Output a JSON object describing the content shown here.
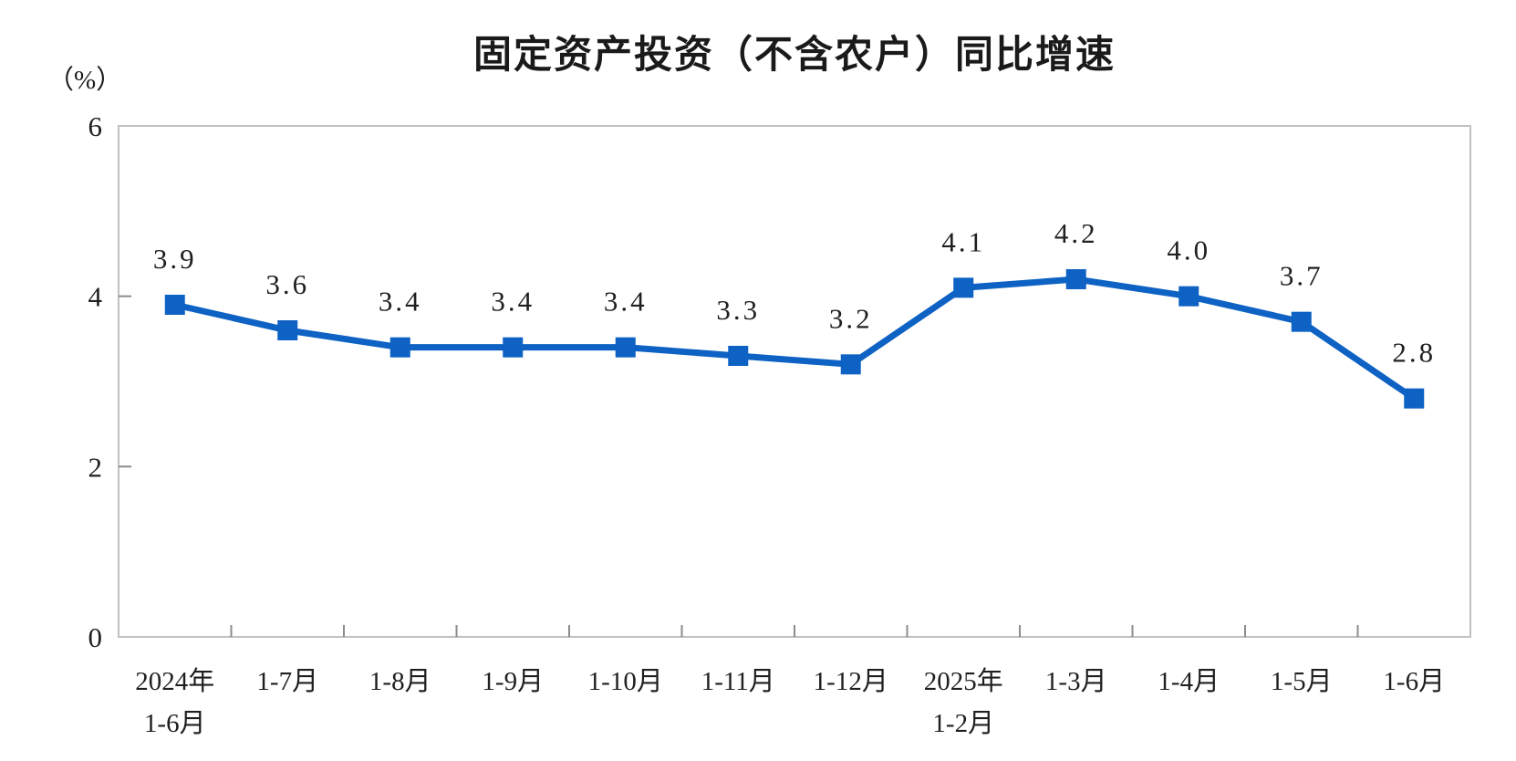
{
  "header": {
    "title": "固定资产投资（不含农户）同比增速",
    "unit_label": "（%）"
  },
  "chart_data": {
    "type": "line",
    "title": "固定资产投资（不含农户）同比增速",
    "xlabel": "",
    "ylabel": "（%）",
    "ylim": [
      0,
      6
    ],
    "yticks": [
      0,
      2,
      4,
      6
    ],
    "grid": false,
    "legend": "none",
    "line_color": "#0d62c4",
    "marker_shape": "square",
    "border_color": "#c1c1c1",
    "tick_color": "#8c8c8c",
    "categories": [
      "2024年1-6月",
      "1-7月",
      "1-8月",
      "1-9月",
      "1-10月",
      "1-11月",
      "1-12月",
      "2025年1-2月",
      "1-3月",
      "1-4月",
      "1-5月",
      "1-6月"
    ],
    "x_tick_labels": [
      {
        "line1": "2024年",
        "line2": "1-6月"
      },
      {
        "line1": "1-7月",
        "line2": ""
      },
      {
        "line1": "1-8月",
        "line2": ""
      },
      {
        "line1": "1-9月",
        "line2": ""
      },
      {
        "line1": "1-10月",
        "line2": ""
      },
      {
        "line1": "1-11月",
        "line2": ""
      },
      {
        "line1": "1-12月",
        "line2": ""
      },
      {
        "line1": "2025年",
        "line2": "1-2月"
      },
      {
        "line1": "1-3月",
        "line2": ""
      },
      {
        "line1": "1-4月",
        "line2": ""
      },
      {
        "line1": "1-5月",
        "line2": ""
      },
      {
        "line1": "1-6月",
        "line2": ""
      }
    ],
    "values": [
      3.9,
      3.6,
      3.4,
      3.4,
      3.4,
      3.3,
      3.2,
      4.1,
      4.2,
      4.0,
      3.7,
      2.8
    ],
    "point_labels": [
      "3.9",
      "3.6",
      "3.4",
      "3.4",
      "3.4",
      "3.3",
      "3.2",
      "4.1",
      "4.2",
      "4.0",
      "3.7",
      "2.8"
    ]
  }
}
